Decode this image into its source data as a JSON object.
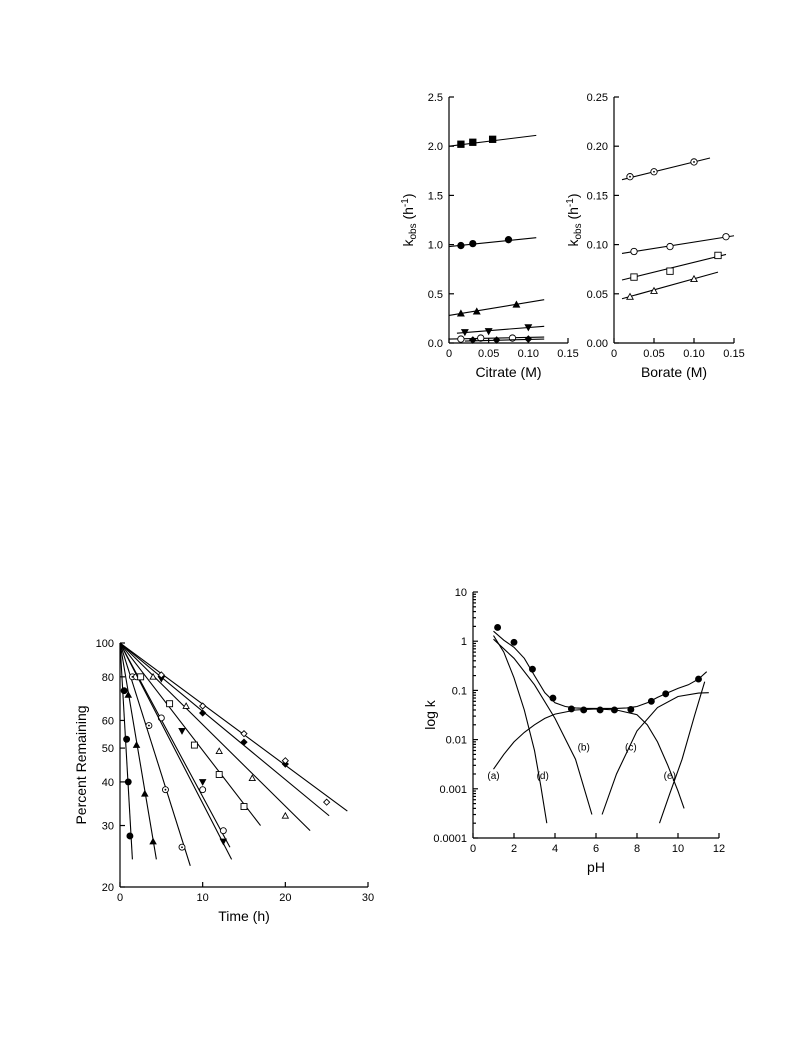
{
  "chart_data": [
    {
      "id": "citrate",
      "type": "scatter",
      "xlabel": "Citrate (M)",
      "ylabel_main": "k",
      "ylabel_sub": "obs",
      "ylabel_unit": " (h",
      "ylabel_exp": "-1",
      "ylabel_close": ")",
      "xlim": [
        0,
        0.15
      ],
      "ylim": [
        0,
        2.5
      ],
      "xticks": [
        0,
        0.05,
        0.1,
        0.15
      ],
      "xtick_labels": [
        "0",
        "0.05",
        "0.10",
        "0.15"
      ],
      "yticks": [
        0,
        0.5,
        1.0,
        1.5,
        2.0,
        2.5
      ],
      "ytick_labels": [
        "0.0",
        "0.5",
        "1.0",
        "1.5",
        "2.0",
        "2.5"
      ],
      "series": [
        {
          "marker": "square-filled",
          "x": [
            0.015,
            0.03,
            0.055
          ],
          "y": [
            2.02,
            2.04,
            2.07
          ],
          "fit": [
            [
              0.0,
              2.0
            ],
            [
              0.11,
              2.11
            ]
          ]
        },
        {
          "marker": "circle-filled",
          "x": [
            0.015,
            0.03,
            0.075
          ],
          "y": [
            0.99,
            1.01,
            1.05
          ],
          "fit": [
            [
              0.0,
              0.98
            ],
            [
              0.11,
              1.07
            ]
          ]
        },
        {
          "marker": "triangle-filled",
          "x": [
            0.015,
            0.035,
            0.085
          ],
          "y": [
            0.3,
            0.32,
            0.39
          ],
          "fit": [
            [
              0.0,
              0.28
            ],
            [
              0.12,
              0.44
            ]
          ]
        },
        {
          "marker": "triangle-down-filled",
          "x": [
            0.02,
            0.05,
            0.1
          ],
          "y": [
            0.11,
            0.12,
            0.16
          ],
          "fit": [
            [
              0.01,
              0.1
            ],
            [
              0.12,
              0.17
            ]
          ]
        },
        {
          "marker": "circle-open",
          "x": [
            0.015,
            0.04,
            0.08
          ],
          "y": [
            0.04,
            0.05,
            0.05
          ],
          "fit": [
            [
              0.0,
              0.04
            ],
            [
              0.12,
              0.06
            ]
          ]
        },
        {
          "marker": "diamond-filled",
          "x": [
            0.03,
            0.06,
            0.1
          ],
          "y": [
            0.03,
            0.03,
            0.04
          ],
          "fit": [
            [
              0.02,
              0.02
            ],
            [
              0.12,
              0.04
            ]
          ]
        }
      ]
    },
    {
      "id": "borate",
      "type": "scatter",
      "xlabel": "Borate (M)",
      "ylabel_main": "k",
      "ylabel_sub": "obs",
      "ylabel_unit": " (h",
      "ylabel_exp": "-1",
      "ylabel_close": ")",
      "xlim": [
        0,
        0.15
      ],
      "ylim": [
        0,
        0.25
      ],
      "xticks": [
        0,
        0.05,
        0.1,
        0.15
      ],
      "xtick_labels": [
        "0",
        "0.05",
        "0.10",
        "0.15"
      ],
      "yticks": [
        0,
        0.05,
        0.1,
        0.15,
        0.2,
        0.25
      ],
      "ytick_labels": [
        "0.00",
        "0.05",
        "0.10",
        "0.15",
        "0.20",
        "0.25"
      ],
      "series": [
        {
          "marker": "circle-dot",
          "x": [
            0.02,
            0.05,
            0.1
          ],
          "y": [
            0.169,
            0.174,
            0.184
          ],
          "fit": [
            [
              0.01,
              0.166
            ],
            [
              0.12,
              0.188
            ]
          ]
        },
        {
          "marker": "circle-open",
          "x": [
            0.025,
            0.07,
            0.14
          ],
          "y": [
            0.093,
            0.098,
            0.108
          ],
          "fit": [
            [
              0.01,
              0.091
            ],
            [
              0.15,
              0.109
            ]
          ]
        },
        {
          "marker": "square-open",
          "x": [
            0.025,
            0.07,
            0.13
          ],
          "y": [
            0.067,
            0.073,
            0.089
          ],
          "fit": [
            [
              0.01,
              0.064
            ],
            [
              0.14,
              0.09
            ]
          ]
        },
        {
          "marker": "triangle-open",
          "x": [
            0.02,
            0.05,
            0.1
          ],
          "y": [
            0.047,
            0.053,
            0.065
          ],
          "fit": [
            [
              0.01,
              0.045
            ],
            [
              0.13,
              0.072
            ]
          ]
        }
      ]
    },
    {
      "id": "decay",
      "type": "scatter",
      "log_y": true,
      "xlabel": "Time  (h)",
      "ylabel": "Percent  Remaining",
      "xlim": [
        0,
        30
      ],
      "ylim": [
        20,
        100
      ],
      "xticks": [
        0,
        10,
        20,
        30
      ],
      "xtick_labels": [
        "0",
        "10",
        "20",
        "30"
      ],
      "yticks": [
        20,
        30,
        40,
        50,
        60,
        80,
        100
      ],
      "ytick_labels": [
        "20",
        "30",
        "40",
        "50",
        "60",
        "80",
        "100"
      ],
      "series": [
        {
          "marker": "circle-filled",
          "x": [
            0.5,
            0.8,
            1.0,
            1.2
          ],
          "y": [
            73,
            53,
            40,
            28
          ],
          "fit": [
            [
              0,
              100
            ],
            [
              1.5,
              24
            ]
          ]
        },
        {
          "marker": "triangle-filled",
          "x": [
            1.0,
            2.0,
            3.0,
            4.0
          ],
          "y": [
            71,
            51,
            37,
            27
          ],
          "fit": [
            [
              0,
              100
            ],
            [
              4.4,
              24
            ]
          ]
        },
        {
          "marker": "circle-dot",
          "x": [
            1.5,
            3.5,
            5.5,
            7.5
          ],
          "y": [
            80,
            58,
            38,
            26
          ],
          "fit": [
            [
              0,
              100
            ],
            [
              8.5,
              23
            ]
          ]
        },
        {
          "marker": "circle-open",
          "x": [
            2.0,
            5.0,
            10.0,
            12.5
          ],
          "y": [
            80,
            61,
            38,
            29
          ],
          "fit": [
            [
              0,
              100
            ],
            [
              13.3,
              26
            ]
          ]
        },
        {
          "marker": "triangle-down-filled",
          "x": [
            5.0,
            7.5,
            10.0,
            12.5
          ],
          "y": [
            79,
            56,
            40,
            27
          ],
          "fit": [
            [
              0,
              100
            ],
            [
              13.5,
              24
            ]
          ]
        },
        {
          "marker": "square-open",
          "x": [
            2.5,
            6.0,
            9.0,
            12.0,
            15.0
          ],
          "y": [
            80,
            67,
            51,
            42,
            34
          ],
          "fit": [
            [
              0,
              100
            ],
            [
              17.0,
              30
            ]
          ]
        },
        {
          "marker": "triangle-open",
          "x": [
            4.0,
            8.0,
            12.0,
            16.0,
            20.0
          ],
          "y": [
            80,
            66,
            49,
            41,
            32
          ],
          "fit": [
            [
              0,
              100
            ],
            [
              23.0,
              29
            ]
          ]
        },
        {
          "marker": "diamond-filled",
          "x": [
            5.0,
            10.0,
            15.0,
            20.0
          ],
          "y": [
            80,
            63,
            52,
            45
          ],
          "fit": [
            [
              0,
              100
            ],
            [
              25.3,
              32
            ]
          ]
        },
        {
          "marker": "diamond-open",
          "x": [
            5.0,
            10.0,
            15.0,
            20.0,
            25.0
          ],
          "y": [
            81,
            66,
            55,
            46,
            35
          ],
          "fit": [
            [
              0,
              100
            ],
            [
              27.5,
              33
            ]
          ]
        }
      ]
    },
    {
      "id": "ph_profile",
      "type": "line",
      "log_y": true,
      "xlabel": "pH",
      "ylabel": "log k",
      "xlim": [
        0,
        12
      ],
      "ylim": [
        0.0001,
        10
      ],
      "xticks": [
        0,
        2,
        4,
        6,
        8,
        10,
        12
      ],
      "xtick_labels": [
        "0",
        "2",
        "4",
        "6",
        "8",
        "10",
        "12"
      ],
      "yticks": [
        0.0001,
        0.001,
        0.01,
        0.1,
        1,
        10
      ],
      "ytick_labels": [
        "0.0001",
        "0.001",
        "0.01",
        "0.1",
        "1",
        "10"
      ],
      "points": {
        "x": [
          1.2,
          2.0,
          2.9,
          3.9,
          4.8,
          5.4,
          6.2,
          6.9,
          7.7,
          8.7,
          9.4,
          11.0
        ],
        "y": [
          1.9,
          0.95,
          0.27,
          0.07,
          0.042,
          0.04,
          0.04,
          0.04,
          0.041,
          0.06,
          0.085,
          0.17
        ]
      },
      "curves": [
        {
          "name": "total",
          "x": [
            1.0,
            1.5,
            2.0,
            2.5,
            3.0,
            3.5,
            4.0,
            4.5,
            5.0,
            5.5,
            6.0,
            7.0,
            7.5,
            8.0,
            8.5,
            9.0,
            9.5,
            10.0,
            10.5,
            11.0,
            11.4
          ],
          "y": [
            1.6,
            1.05,
            0.75,
            0.45,
            0.2,
            0.09,
            0.056,
            0.047,
            0.044,
            0.043,
            0.043,
            0.043,
            0.044,
            0.047,
            0.056,
            0.072,
            0.09,
            0.11,
            0.13,
            0.17,
            0.24
          ]
        },
        {
          "name": "steep-acid",
          "x": [
            1.0,
            1.5,
            2.0,
            2.5,
            3.0,
            3.3,
            3.6
          ],
          "y": [
            1.3,
            0.6,
            0.18,
            0.04,
            0.006,
            0.0012,
            0.0002
          ]
        },
        {
          "name": "shallow-acid",
          "x": [
            1.0,
            2.0,
            3.0,
            4.0,
            5.0,
            5.8
          ],
          "y": [
            1.1,
            0.45,
            0.13,
            0.027,
            0.004,
            0.0003
          ]
        },
        {
          "name": "plateau-a",
          "x": [
            1.0,
            1.5,
            2.0,
            2.5,
            3.0,
            3.5,
            4.0,
            5.0,
            6.0,
            7.0,
            8.0,
            8.5,
            9.0,
            9.5,
            10.0,
            10.3
          ],
          "y": [
            0.0025,
            0.005,
            0.009,
            0.014,
            0.02,
            0.027,
            0.033,
            0.04,
            0.042,
            0.04,
            0.032,
            0.02,
            0.009,
            0.003,
            0.0009,
            0.0004
          ]
        },
        {
          "name": "base-curve",
          "x": [
            6.3,
            7.0,
            8.0,
            9.0,
            10.0,
            11.0,
            11.5
          ],
          "y": [
            0.0003,
            0.002,
            0.015,
            0.045,
            0.075,
            0.088,
            0.09
          ]
        },
        {
          "name": "steep-base",
          "x": [
            9.1,
            9.6,
            10.2,
            10.8,
            11.3
          ],
          "y": [
            0.0002,
            0.0008,
            0.004,
            0.03,
            0.15
          ]
        }
      ],
      "labels": [
        {
          "text": "(a)",
          "x": 1.0,
          "y": 0.0016
        },
        {
          "text": "(d)",
          "x": 3.4,
          "y": 0.0016
        },
        {
          "text": "(b)",
          "x": 5.4,
          "y": 0.006
        },
        {
          "text": "(c)",
          "x": 7.7,
          "y": 0.006
        },
        {
          "text": "(e)",
          "x": 9.6,
          "y": 0.0016
        }
      ]
    }
  ]
}
